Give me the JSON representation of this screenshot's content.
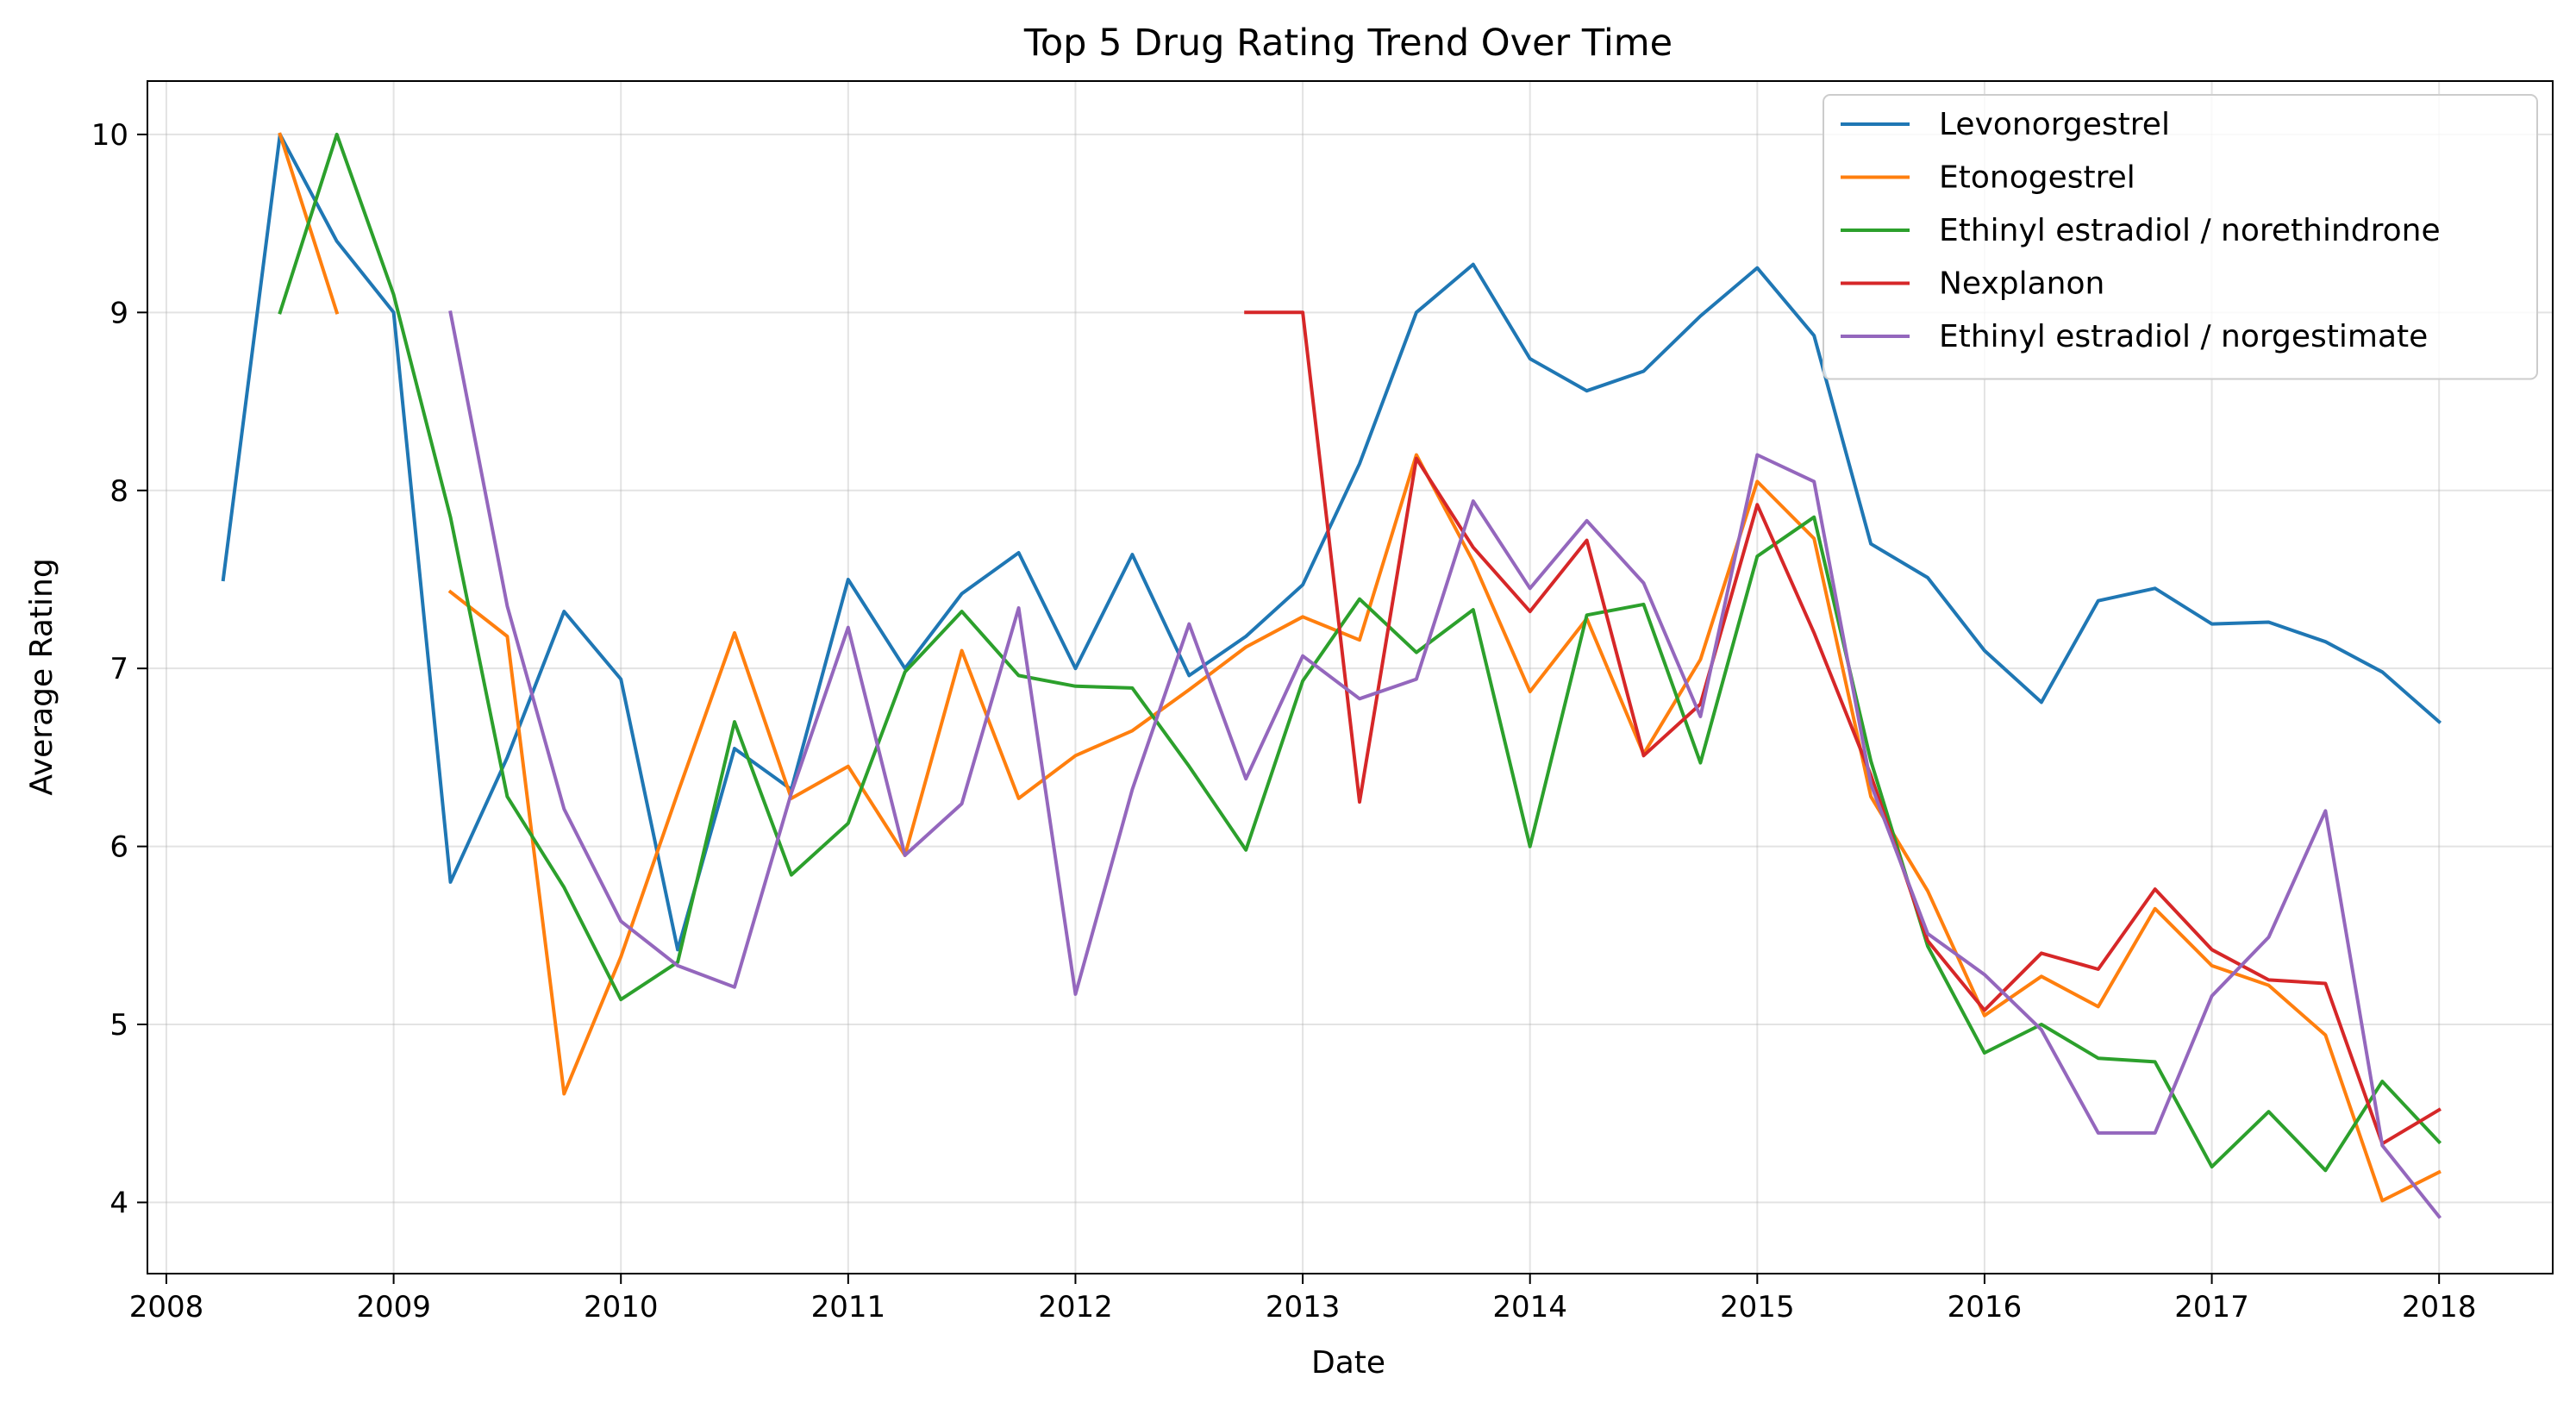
{
  "chart_data": {
    "type": "line",
    "title": "Top 5 Drug Rating Trend Over Time",
    "xlabel": "Date",
    "ylabel": "Average Rating",
    "xlim": [
      "2007-12-01",
      "2018-07-01"
    ],
    "ylim": [
      3.6,
      10.3
    ],
    "x_ticks": [
      "2008",
      "2009",
      "2010",
      "2011",
      "2012",
      "2013",
      "2014",
      "2015",
      "2016",
      "2017",
      "2018"
    ],
    "y_ticks": [
      4,
      5,
      6,
      7,
      8,
      9,
      10
    ],
    "grid": true,
    "legend_position": "top-right",
    "series": [
      {
        "name": "Levonorgestrel",
        "color": "#1f77b4",
        "points": [
          [
            "2008-04",
            7.5
          ],
          [
            "2008-07",
            10.0
          ],
          [
            "2008-10",
            9.4
          ],
          [
            "2009-01",
            9.0
          ],
          [
            "2009-04",
            5.8
          ],
          [
            "2009-07",
            6.5
          ],
          [
            "2009-10",
            7.32
          ],
          [
            "2010-01",
            6.94
          ],
          [
            "2010-04",
            5.42
          ],
          [
            "2010-07",
            6.55
          ],
          [
            "2010-10",
            6.32
          ],
          [
            "2011-01",
            7.5
          ],
          [
            "2011-04",
            7.0
          ],
          [
            "2011-07",
            7.42
          ],
          [
            "2011-10",
            7.65
          ],
          [
            "2012-01",
            7.0
          ],
          [
            "2012-04",
            7.64
          ],
          [
            "2012-07",
            6.96
          ],
          [
            "2012-10",
            7.18
          ],
          [
            "2013-01",
            7.47
          ],
          [
            "2013-04",
            8.15
          ],
          [
            "2013-07",
            9.0
          ],
          [
            "2013-10",
            9.27
          ],
          [
            "2014-01",
            8.74
          ],
          [
            "2014-04",
            8.56
          ],
          [
            "2014-07",
            8.67
          ],
          [
            "2014-10",
            8.98
          ],
          [
            "2015-01",
            9.25
          ],
          [
            "2015-04",
            8.87
          ],
          [
            "2015-07",
            7.7
          ],
          [
            "2015-10",
            7.51
          ],
          [
            "2016-01",
            7.1
          ],
          [
            "2016-04",
            6.81
          ],
          [
            "2016-07",
            7.38
          ],
          [
            "2016-10",
            7.45
          ],
          [
            "2017-01",
            7.25
          ],
          [
            "2017-04",
            7.26
          ],
          [
            "2017-07",
            7.15
          ],
          [
            "2017-10",
            6.98
          ],
          [
            "2018-01",
            6.7
          ]
        ]
      },
      {
        "name": "Etonogestrel",
        "color": "#ff7f0e",
        "points": [
          [
            "2008-07",
            10.0
          ],
          [
            "2008-10",
            9.0
          ],
          null,
          [
            "2009-04",
            7.43
          ],
          [
            "2009-07",
            7.18
          ],
          [
            "2009-10",
            4.61
          ],
          [
            "2010-01",
            5.38
          ],
          [
            "2010-04",
            6.3
          ],
          [
            "2010-07",
            7.2
          ],
          [
            "2010-10",
            6.27
          ],
          [
            "2011-01",
            6.45
          ],
          [
            "2011-04",
            5.95
          ],
          [
            "2011-07",
            7.1
          ],
          [
            "2011-10",
            6.27
          ],
          [
            "2012-01",
            6.51
          ],
          [
            "2012-04",
            6.65
          ],
          [
            "2012-07",
            6.88
          ],
          [
            "2012-10",
            7.12
          ],
          [
            "2013-01",
            7.29
          ],
          [
            "2013-04",
            7.16
          ],
          [
            "2013-07",
            8.2
          ],
          [
            "2013-10",
            7.6
          ],
          [
            "2014-01",
            6.87
          ],
          [
            "2014-04",
            7.28
          ],
          [
            "2014-07",
            6.52
          ],
          [
            "2014-10",
            7.05
          ],
          [
            "2015-01",
            8.05
          ],
          [
            "2015-04",
            7.73
          ],
          [
            "2015-07",
            6.28
          ],
          [
            "2015-10",
            5.75
          ],
          [
            "2016-01",
            5.05
          ],
          [
            "2016-04",
            5.27
          ],
          [
            "2016-07",
            5.1
          ],
          [
            "2016-10",
            5.65
          ],
          [
            "2017-01",
            5.33
          ],
          [
            "2017-04",
            5.22
          ],
          [
            "2017-07",
            4.94
          ],
          [
            "2017-10",
            4.01
          ],
          [
            "2018-01",
            4.17
          ]
        ]
      },
      {
        "name": "Ethinyl estradiol / norethindrone",
        "color": "#2ca02c",
        "points": [
          [
            "2008-07",
            9.0
          ],
          [
            "2008-10",
            10.0
          ],
          [
            "2009-01",
            9.1
          ],
          [
            "2009-04",
            7.85
          ],
          [
            "2009-07",
            6.28
          ],
          [
            "2009-10",
            5.77
          ],
          [
            "2010-01",
            5.14
          ],
          [
            "2010-04",
            5.35
          ],
          [
            "2010-07",
            6.7
          ],
          [
            "2010-10",
            5.84
          ],
          [
            "2011-01",
            6.13
          ],
          [
            "2011-04",
            6.98
          ],
          [
            "2011-07",
            7.32
          ],
          [
            "2011-10",
            6.96
          ],
          [
            "2012-01",
            6.9
          ],
          [
            "2012-04",
            6.89
          ],
          [
            "2012-07",
            6.45
          ],
          [
            "2012-10",
            5.98
          ],
          [
            "2013-01",
            6.93
          ],
          [
            "2013-04",
            7.39
          ],
          [
            "2013-07",
            7.09
          ],
          [
            "2013-10",
            7.33
          ],
          [
            "2014-01",
            6.0
          ],
          [
            "2014-04",
            7.3
          ],
          [
            "2014-07",
            7.36
          ],
          [
            "2014-10",
            6.47
          ],
          [
            "2015-01",
            7.63
          ],
          [
            "2015-04",
            7.85
          ],
          [
            "2015-07",
            6.48
          ],
          [
            "2015-10",
            5.44
          ],
          [
            "2016-01",
            4.84
          ],
          [
            "2016-04",
            5.0
          ],
          [
            "2016-07",
            4.81
          ],
          [
            "2016-10",
            4.79
          ],
          [
            "2017-01",
            4.2
          ],
          [
            "2017-04",
            4.51
          ],
          [
            "2017-07",
            4.18
          ],
          [
            "2017-10",
            4.68
          ],
          [
            "2018-01",
            4.34
          ]
        ]
      },
      {
        "name": "Nexplanon",
        "color": "#d62728",
        "points": [
          [
            "2012-10",
            9.0
          ],
          [
            "2013-01",
            9.0
          ],
          [
            "2013-04",
            6.25
          ],
          [
            "2013-07",
            8.18
          ],
          [
            "2013-10",
            7.68
          ],
          [
            "2014-01",
            7.32
          ],
          [
            "2014-04",
            7.72
          ],
          [
            "2014-07",
            6.51
          ],
          [
            "2014-10",
            6.8
          ],
          [
            "2015-01",
            7.92
          ],
          [
            "2015-04",
            7.2
          ],
          [
            "2015-07",
            6.4
          ],
          [
            "2015-10",
            5.47
          ],
          [
            "2016-01",
            5.08
          ],
          [
            "2016-04",
            5.4
          ],
          [
            "2016-07",
            5.31
          ],
          [
            "2016-10",
            5.76
          ],
          [
            "2017-01",
            5.42
          ],
          [
            "2017-04",
            5.25
          ],
          [
            "2017-07",
            5.23
          ],
          [
            "2017-10",
            4.33
          ],
          [
            "2018-01",
            4.52
          ]
        ]
      },
      {
        "name": "Ethinyl estradiol / norgestimate",
        "color": "#9467bd",
        "points": [
          [
            "2009-04",
            9.0
          ],
          [
            "2009-07",
            7.35
          ],
          [
            "2009-10",
            6.21
          ],
          [
            "2010-01",
            5.58
          ],
          [
            "2010-04",
            5.33
          ],
          [
            "2010-07",
            5.21
          ],
          [
            "2010-10",
            6.3
          ],
          [
            "2011-01",
            7.23
          ],
          [
            "2011-04",
            5.95
          ],
          [
            "2011-07",
            6.24
          ],
          [
            "2011-10",
            7.34
          ],
          [
            "2012-01",
            5.17
          ],
          [
            "2012-04",
            6.32
          ],
          [
            "2012-07",
            7.25
          ],
          [
            "2012-10",
            6.38
          ],
          [
            "2013-01",
            7.07
          ],
          [
            "2013-04",
            6.83
          ],
          [
            "2013-07",
            6.94
          ],
          [
            "2013-10",
            7.94
          ],
          [
            "2014-01",
            7.45
          ],
          [
            "2014-04",
            7.83
          ],
          [
            "2014-07",
            7.48
          ],
          [
            "2014-10",
            6.73
          ],
          [
            "2015-01",
            8.2
          ],
          [
            "2015-04",
            8.05
          ],
          [
            "2015-07",
            6.35
          ],
          [
            "2015-10",
            5.51
          ],
          [
            "2016-01",
            5.28
          ],
          [
            "2016-04",
            4.97
          ],
          [
            "2016-07",
            4.39
          ],
          [
            "2016-10",
            4.39
          ],
          [
            "2017-01",
            5.16
          ],
          [
            "2017-04",
            5.49
          ],
          [
            "2017-07",
            6.2
          ],
          [
            "2017-10",
            4.32
          ],
          [
            "2018-01",
            3.92
          ]
        ]
      }
    ]
  }
}
